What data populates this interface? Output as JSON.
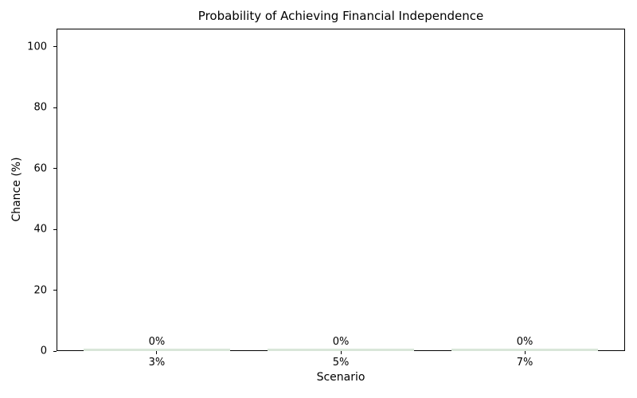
{
  "chart_data": {
    "type": "bar",
    "title": "Probability of Achieving Financial Independence",
    "xlabel": "Scenario",
    "ylabel": "Chance (%)",
    "categories": [
      "3%",
      "5%",
      "7%"
    ],
    "values": [
      0,
      0,
      0
    ],
    "bar_value_labels": [
      "0%",
      "0%",
      "0%"
    ],
    "yticks": [
      0,
      20,
      40,
      60,
      80,
      100
    ],
    "ylim": [
      0,
      106
    ],
    "bar_width_fraction": 0.8,
    "bar_color": "#d9e6d9",
    "axis_color": "#000000",
    "text_color": "#000000",
    "background_color": "#ffffff",
    "grid": false,
    "legend": null
  }
}
